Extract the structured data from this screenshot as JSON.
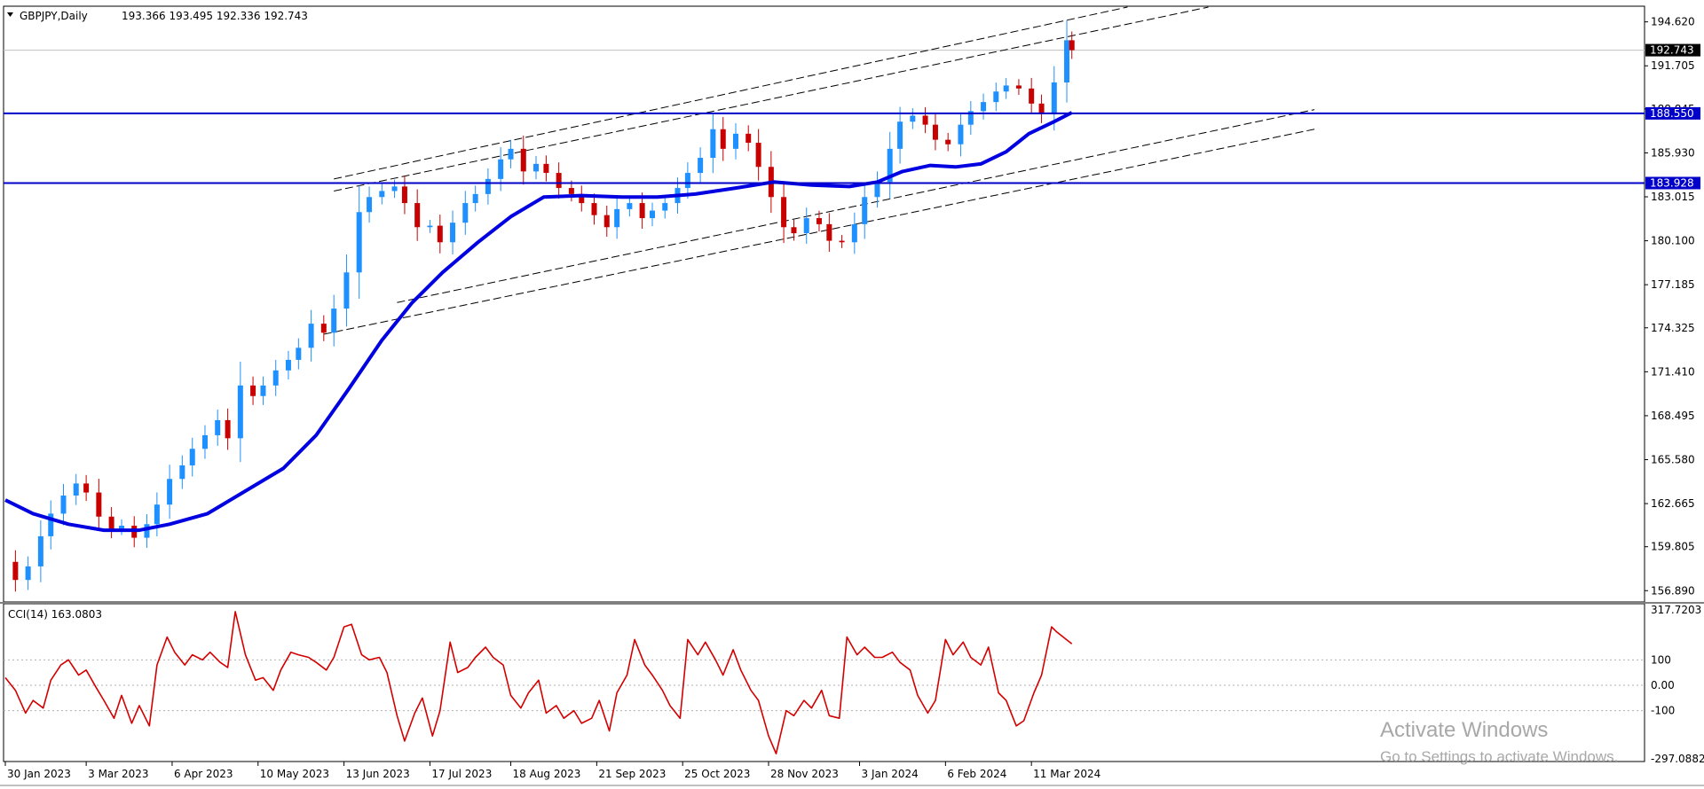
{
  "chart_data": {
    "type": "candlestick",
    "symbol_header": "GBPJPY,Daily",
    "ohlc_header": "193.366 193.495 192.336 192.743",
    "last_price": 192.743,
    "price_axis_ticks": [
      "194.620",
      "191.705",
      "188.845",
      "185.930",
      "183.015",
      "180.100",
      "177.185",
      "174.325",
      "171.410",
      "168.495",
      "165.580",
      "162.665",
      "159.805",
      "156.890"
    ],
    "ylim": [
      156.2,
      195.6
    ],
    "date_labels": [
      "30 Jan 2023",
      "3 Mar 2023",
      "6 Apr 2023",
      "10 May 2023",
      "13 Jun 2023",
      "17 Jul 2023",
      "18 Aug 2023",
      "21 Sep 2023",
      "25 Oct 2023",
      "28 Nov 2023",
      "3 Jan 2024",
      "6 Feb 2024",
      "11 Mar 2024"
    ],
    "horizontal_lines": [
      {
        "value": 188.55,
        "label": "188.550",
        "color": "#0000c8"
      },
      {
        "value": 183.928,
        "label": "183.928",
        "color": "#0000c8"
      }
    ],
    "trend_lines": [
      {
        "from": [
          "2023-06-09",
          184.2
        ],
        "to": [
          "2024-04-18",
          195.6
        ]
      },
      {
        "from": [
          "2023-06-09",
          183.4
        ],
        "to": [
          "2024-05-20",
          195.6
        ]
      },
      {
        "from": [
          "2023-07-04",
          176.0
        ],
        "to": [
          "2024-07-01",
          188.8
        ]
      },
      {
        "from": [
          "2023-06-05",
          173.9
        ],
        "to": [
          "2024-07-01",
          187.5
        ]
      }
    ],
    "close_path": [
      [
        "2023-01-30",
        158.8
      ],
      [
        "2023-02-03",
        157.6
      ],
      [
        "2023-02-08",
        158.5
      ],
      [
        "2023-02-13",
        160.5
      ],
      [
        "2023-02-17",
        162.0
      ],
      [
        "2023-02-22",
        163.2
      ],
      [
        "2023-02-27",
        164.0
      ],
      [
        "2023-03-03",
        163.4
      ],
      [
        "2023-03-08",
        161.8
      ],
      [
        "2023-03-13",
        161.0
      ],
      [
        "2023-03-17",
        161.2
      ],
      [
        "2023-03-22",
        160.4
      ],
      [
        "2023-03-27",
        161.3
      ],
      [
        "2023-03-31",
        162.6
      ],
      [
        "2023-04-05",
        164.3
      ],
      [
        "2023-04-10",
        165.2
      ],
      [
        "2023-04-14",
        166.3
      ],
      [
        "2023-04-19",
        167.2
      ],
      [
        "2023-04-24",
        168.2
      ],
      [
        "2023-04-28",
        167.0
      ],
      [
        "2023-05-03",
        170.5
      ],
      [
        "2023-05-08",
        169.8
      ],
      [
        "2023-05-12",
        170.5
      ],
      [
        "2023-05-17",
        171.5
      ],
      [
        "2023-05-22",
        172.2
      ],
      [
        "2023-05-26",
        173.0
      ],
      [
        "2023-05-31",
        174.6
      ],
      [
        "2023-06-05",
        174.0
      ],
      [
        "2023-06-09",
        175.6
      ],
      [
        "2023-06-14",
        178.0
      ],
      [
        "2023-06-19",
        182.0
      ],
      [
        "2023-06-23",
        183.0
      ],
      [
        "2023-06-28",
        183.4
      ],
      [
        "2023-07-03",
        183.7
      ],
      [
        "2023-07-07",
        182.6
      ],
      [
        "2023-07-12",
        181.0
      ],
      [
        "2023-07-17",
        181.1
      ],
      [
        "2023-07-21",
        180.0
      ],
      [
        "2023-07-26",
        181.3
      ],
      [
        "2023-07-31",
        182.6
      ],
      [
        "2023-08-04",
        183.2
      ],
      [
        "2023-08-09",
        184.2
      ],
      [
        "2023-08-14",
        185.5
      ],
      [
        "2023-08-18",
        186.2
      ],
      [
        "2023-08-23",
        184.7
      ],
      [
        "2023-08-28",
        185.2
      ],
      [
        "2023-09-01",
        184.6
      ],
      [
        "2023-09-06",
        183.6
      ],
      [
        "2023-09-11",
        183.2
      ],
      [
        "2023-09-15",
        182.6
      ],
      [
        "2023-09-20",
        181.8
      ],
      [
        "2023-09-25",
        181.0
      ],
      [
        "2023-09-29",
        182.2
      ],
      [
        "2023-10-04",
        182.6
      ],
      [
        "2023-10-09",
        181.6
      ],
      [
        "2023-10-13",
        182.1
      ],
      [
        "2023-10-18",
        182.6
      ],
      [
        "2023-10-23",
        183.6
      ],
      [
        "2023-10-27",
        184.6
      ],
      [
        "2023-11-01",
        185.6
      ],
      [
        "2023-11-06",
        187.5
      ],
      [
        "2023-11-10",
        186.2
      ],
      [
        "2023-11-15",
        187.2
      ],
      [
        "2023-11-20",
        186.6
      ],
      [
        "2023-11-24",
        185.0
      ],
      [
        "2023-11-29",
        183.0
      ],
      [
        "2023-12-04",
        181.0
      ],
      [
        "2023-12-08",
        180.6
      ],
      [
        "2023-12-13",
        181.6
      ],
      [
        "2023-12-18",
        181.2
      ],
      [
        "2023-12-22",
        180.1
      ],
      [
        "2023-12-27",
        180.0
      ],
      [
        "2024-01-01",
        181.2
      ],
      [
        "2024-01-05",
        183.0
      ],
      [
        "2024-01-10",
        184.0
      ],
      [
        "2024-01-15",
        186.2
      ],
      [
        "2024-01-19",
        188.0
      ],
      [
        "2024-01-24",
        188.4
      ],
      [
        "2024-01-29",
        187.8
      ],
      [
        "2024-02-02",
        186.8
      ],
      [
        "2024-02-07",
        186.5
      ],
      [
        "2024-02-12",
        187.8
      ],
      [
        "2024-02-16",
        188.7
      ],
      [
        "2024-02-21",
        189.3
      ],
      [
        "2024-02-26",
        190.0
      ],
      [
        "2024-03-01",
        190.4
      ],
      [
        "2024-03-06",
        190.2
      ],
      [
        "2024-03-11",
        189.2
      ],
      [
        "2024-03-15",
        188.5
      ],
      [
        "2024-03-20",
        190.6
      ],
      [
        "2024-03-25",
        193.4
      ],
      [
        "2024-03-27",
        192.743
      ]
    ],
    "ma_path": [
      [
        "2023-01-30",
        162.9
      ],
      [
        "2023-02-10",
        162.0
      ],
      [
        "2023-02-24",
        161.3
      ],
      [
        "2023-03-10",
        160.9
      ],
      [
        "2023-03-24",
        160.9
      ],
      [
        "2023-04-05",
        161.3
      ],
      [
        "2023-04-20",
        162.0
      ],
      [
        "2023-05-05",
        163.5
      ],
      [
        "2023-05-20",
        165.0
      ],
      [
        "2023-06-02",
        167.2
      ],
      [
        "2023-06-15",
        170.3
      ],
      [
        "2023-06-28",
        173.5
      ],
      [
        "2023-07-10",
        176.0
      ],
      [
        "2023-07-22",
        178.0
      ],
      [
        "2023-08-05",
        180.0
      ],
      [
        "2023-08-18",
        181.7
      ],
      [
        "2023-08-31",
        183.0
      ],
      [
        "2023-09-15",
        183.1
      ],
      [
        "2023-10-01",
        183.0
      ],
      [
        "2023-10-15",
        183.0
      ],
      [
        "2023-10-30",
        183.2
      ],
      [
        "2023-11-15",
        183.6
      ],
      [
        "2023-11-30",
        184.0
      ],
      [
        "2023-12-15",
        183.8
      ],
      [
        "2023-12-30",
        183.7
      ],
      [
        "2024-01-10",
        184.0
      ],
      [
        "2024-01-20",
        184.7
      ],
      [
        "2024-01-31",
        185.1
      ],
      [
        "2024-02-10",
        185.0
      ],
      [
        "2024-02-20",
        185.2
      ],
      [
        "2024-03-01",
        186.0
      ],
      [
        "2024-03-10",
        187.2
      ],
      [
        "2024-03-20",
        188.0
      ],
      [
        "2024-03-27",
        188.6
      ]
    ],
    "indicator": {
      "label": "CCI(14) 163.0803",
      "axis_ticks": [
        "317.7203",
        "100",
        "0.00",
        "-100",
        "-297.0882"
      ],
      "ylim": [
        -297.0882,
        317.7203
      ],
      "levels": [
        100,
        0,
        -100
      ],
      "values": [
        [
          "2023-01-30",
          30
        ],
        [
          "2023-02-03",
          -20
        ],
        [
          "2023-02-07",
          -110
        ],
        [
          "2023-02-10",
          -60
        ],
        [
          "2023-02-14",
          -90
        ],
        [
          "2023-02-17",
          20
        ],
        [
          "2023-02-21",
          80
        ],
        [
          "2023-02-24",
          100
        ],
        [
          "2023-02-28",
          40
        ],
        [
          "2023-03-03",
          60
        ],
        [
          "2023-03-07",
          -10
        ],
        [
          "2023-03-10",
          -60
        ],
        [
          "2023-03-14",
          -130
        ],
        [
          "2023-03-17",
          -40
        ],
        [
          "2023-03-21",
          -150
        ],
        [
          "2023-03-24",
          -80
        ],
        [
          "2023-03-28",
          -160
        ],
        [
          "2023-03-31",
          80
        ],
        [
          "2023-04-04",
          190
        ],
        [
          "2023-04-07",
          130
        ],
        [
          "2023-04-11",
          80
        ],
        [
          "2023-04-14",
          120
        ],
        [
          "2023-04-18",
          100
        ],
        [
          "2023-04-21",
          130
        ],
        [
          "2023-04-25",
          90
        ],
        [
          "2023-04-28",
          70
        ],
        [
          "2023-05-01",
          290
        ],
        [
          "2023-05-05",
          120
        ],
        [
          "2023-05-09",
          20
        ],
        [
          "2023-05-12",
          30
        ],
        [
          "2023-05-16",
          -20
        ],
        [
          "2023-05-19",
          60
        ],
        [
          "2023-05-23",
          130
        ],
        [
          "2023-05-26",
          120
        ],
        [
          "2023-05-30",
          110
        ],
        [
          "2023-06-02",
          90
        ],
        [
          "2023-06-06",
          60
        ],
        [
          "2023-06-09",
          110
        ],
        [
          "2023-06-13",
          230
        ],
        [
          "2023-06-16",
          240
        ],
        [
          "2023-06-20",
          120
        ],
        [
          "2023-06-23",
          100
        ],
        [
          "2023-06-27",
          110
        ],
        [
          "2023-06-30",
          50
        ],
        [
          "2023-07-04",
          -120
        ],
        [
          "2023-07-07",
          -220
        ],
        [
          "2023-07-11",
          -110
        ],
        [
          "2023-07-14",
          -50
        ],
        [
          "2023-07-18",
          -200
        ],
        [
          "2023-07-21",
          -100
        ],
        [
          "2023-07-25",
          170
        ],
        [
          "2023-07-28",
          50
        ],
        [
          "2023-08-01",
          70
        ],
        [
          "2023-08-04",
          110
        ],
        [
          "2023-08-08",
          150
        ],
        [
          "2023-08-11",
          110
        ],
        [
          "2023-08-15",
          80
        ],
        [
          "2023-08-18",
          -40
        ],
        [
          "2023-08-22",
          -90
        ],
        [
          "2023-08-25",
          -30
        ],
        [
          "2023-08-29",
          20
        ],
        [
          "2023-09-01",
          -110
        ],
        [
          "2023-09-05",
          -80
        ],
        [
          "2023-09-08",
          -130
        ],
        [
          "2023-09-12",
          -100
        ],
        [
          "2023-09-15",
          -150
        ],
        [
          "2023-09-19",
          -130
        ],
        [
          "2023-09-22",
          -60
        ],
        [
          "2023-09-26",
          -180
        ],
        [
          "2023-09-29",
          -30
        ],
        [
          "2023-10-03",
          40
        ],
        [
          "2023-10-06",
          180
        ],
        [
          "2023-10-10",
          80
        ],
        [
          "2023-10-13",
          40
        ],
        [
          "2023-10-17",
          -20
        ],
        [
          "2023-10-20",
          -80
        ],
        [
          "2023-10-24",
          -130
        ],
        [
          "2023-10-27",
          180
        ],
        [
          "2023-10-31",
          120
        ],
        [
          "2023-11-03",
          170
        ],
        [
          "2023-11-07",
          100
        ],
        [
          "2023-11-10",
          40
        ],
        [
          "2023-11-14",
          140
        ],
        [
          "2023-11-17",
          60
        ],
        [
          "2023-11-21",
          -20
        ],
        [
          "2023-11-24",
          -60
        ],
        [
          "2023-11-28",
          -200
        ],
        [
          "2023-12-01",
          -270
        ],
        [
          "2023-12-05",
          -100
        ],
        [
          "2023-12-08",
          -120
        ],
        [
          "2023-12-12",
          -60
        ],
        [
          "2023-12-15",
          -90
        ],
        [
          "2023-12-19",
          -20
        ],
        [
          "2023-12-22",
          -120
        ],
        [
          "2023-12-26",
          -130
        ],
        [
          "2023-12-29",
          190
        ],
        [
          "2024-01-02",
          120
        ],
        [
          "2024-01-05",
          150
        ],
        [
          "2024-01-09",
          110
        ],
        [
          "2024-01-12",
          110
        ],
        [
          "2024-01-16",
          130
        ],
        [
          "2024-01-19",
          90
        ],
        [
          "2024-01-23",
          60
        ],
        [
          "2024-01-26",
          -40
        ],
        [
          "2024-01-30",
          -110
        ],
        [
          "2024-02-02",
          -60
        ],
        [
          "2024-02-06",
          180
        ],
        [
          "2024-02-09",
          120
        ],
        [
          "2024-02-13",
          170
        ],
        [
          "2024-02-16",
          110
        ],
        [
          "2024-02-20",
          80
        ],
        [
          "2024-02-23",
          150
        ],
        [
          "2024-02-27",
          -30
        ],
        [
          "2024-03-01",
          -60
        ],
        [
          "2024-03-05",
          -160
        ],
        [
          "2024-03-08",
          -140
        ],
        [
          "2024-03-12",
          -30
        ],
        [
          "2024-03-15",
          40
        ],
        [
          "2024-03-19",
          230
        ],
        [
          "2024-03-21",
          210
        ],
        [
          "2024-03-27",
          163.08
        ]
      ]
    }
  },
  "watermark": {
    "title": "Activate Windows",
    "subtitle": "Go to Settings to activate Windows."
  },
  "colors": {
    "bull": "#1e90ff",
    "bear": "#c80000",
    "ma": "#0000e0",
    "hline": "#0000c8",
    "cci": "#d40000"
  }
}
